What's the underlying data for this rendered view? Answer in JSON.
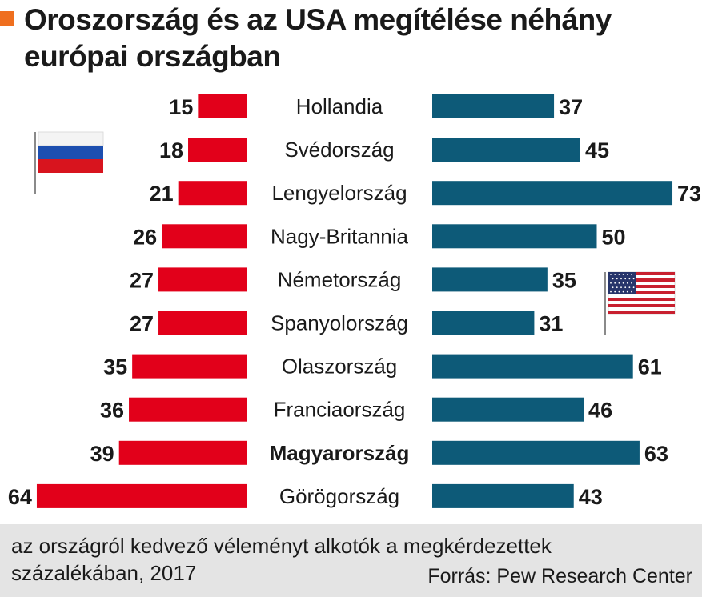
{
  "title": "Oroszország és az USA megítélése néhány európai országban",
  "footnote": "az országról kedvező véleményt alkotók a megkérdezettek százalékában, 2017",
  "source": "Forrás: Pew Research Center",
  "colors": {
    "russia": "#e2001a",
    "usa": "#0d5a78",
    "accent": "#ef6f1f",
    "footer_bg": "#e4e4e4"
  },
  "icons": {
    "russia": "russian-flag-icon",
    "usa": "us-flag-icon"
  },
  "chart_data": {
    "type": "bar",
    "orientation": "horizontal-butterfly",
    "categories": [
      "Hollandia",
      "Svédország",
      "Lengyelország",
      "Nagy-Britannia",
      "Németország",
      "Spanyolország",
      "Olaszország",
      "Franciaország",
      "Magyarország",
      "Görögország"
    ],
    "highlight": "Magyarország",
    "series": [
      {
        "key": "russia",
        "values": [
          15,
          18,
          21,
          26,
          27,
          27,
          35,
          36,
          39,
          64
        ]
      },
      {
        "key": "usa",
        "values": [
          37,
          45,
          73,
          50,
          35,
          31,
          61,
          46,
          63,
          43
        ]
      }
    ]
  }
}
